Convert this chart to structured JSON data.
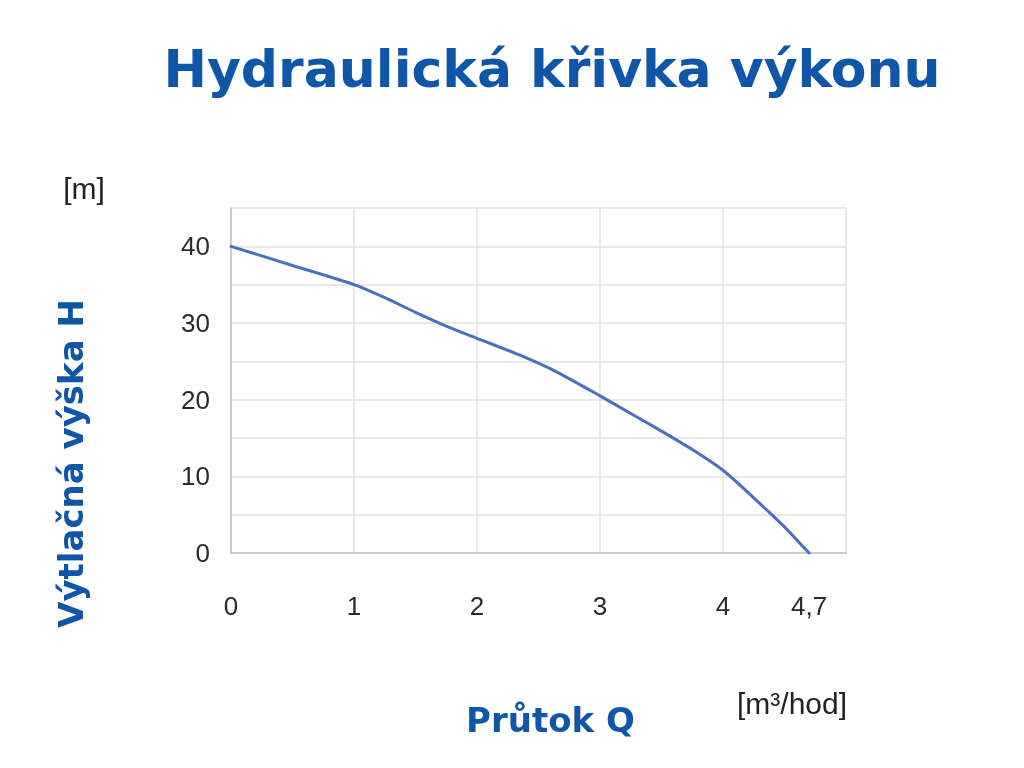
{
  "chart_data": {
    "type": "line",
    "title": "Hydraulická křivka výkonu",
    "xlabel": "Průtok Q",
    "ylabel": "Výtlačná výška H",
    "annotations": [
      "[m]",
      "[m³/hod]"
    ],
    "x": [
      0,
      0.5,
      1,
      1.25,
      1.5,
      1.75,
      2,
      2.35,
      2.65,
      3,
      3.25,
      3.5,
      3.75,
      4,
      4.25,
      4.5,
      4.6,
      4.7
    ],
    "series": [
      {
        "color": "#4a70c0",
        "values": [
          40,
          37.5,
          35,
          33.3,
          31.4,
          29.6,
          28,
          25.8,
          23.6,
          20.5,
          18.2,
          15.9,
          13.5,
          10.8,
          7.2,
          3.4,
          1.7,
          0
        ]
      }
    ],
    "xlim": [
      0,
      5
    ],
    "xticks": [
      0,
      1,
      2,
      3,
      4,
      {
        "value": 4.7,
        "label": "4,7"
      },
      {
        "value": 5,
        "label": null
      }
    ],
    "ylim": [
      0,
      45
    ],
    "yticks": [
      0,
      {
        "value": 5,
        "label": null
      },
      10,
      {
        "value": 15,
        "label": null
      },
      20,
      {
        "value": 25,
        "label": null
      },
      30,
      {
        "value": 35,
        "label": null
      },
      40,
      {
        "value": 45,
        "label": null
      }
    ],
    "grid": true,
    "marker": "none"
  }
}
